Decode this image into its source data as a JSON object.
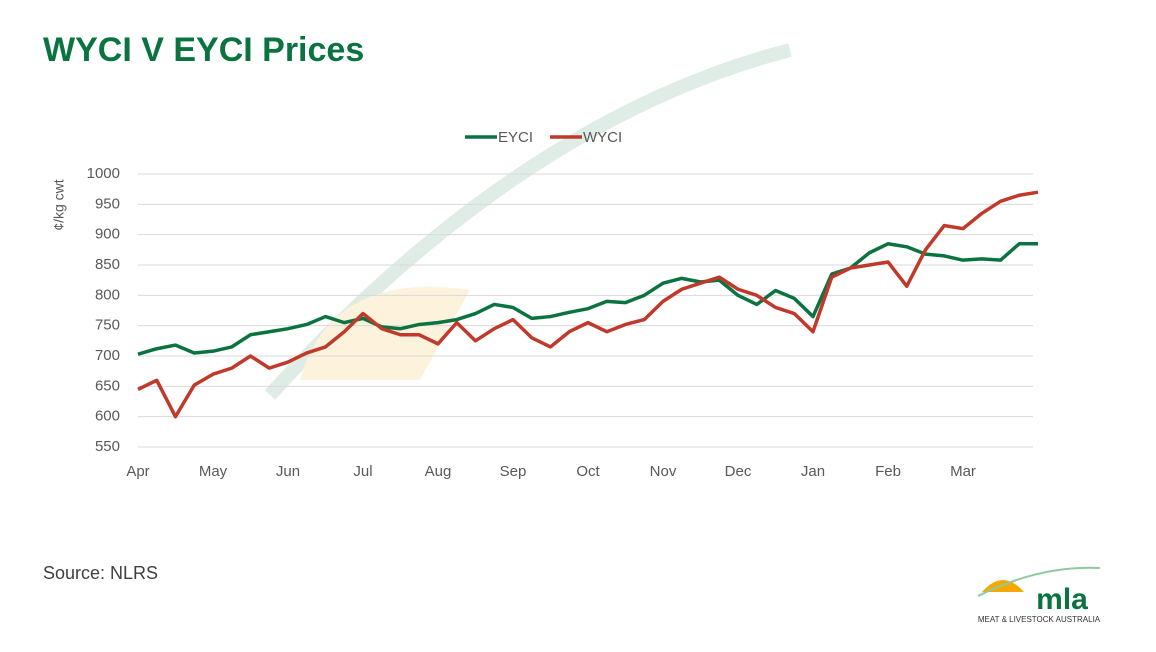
{
  "chart_data": {
    "type": "line",
    "title": "WYCI V EYCI Prices",
    "y_label": "¢/kg cwt",
    "source": "Source: NLRS",
    "logo_text": "mla",
    "logo_subtitle": "MEAT & LIVESTOCK AUSTRALIA",
    "categories": [
      "Apr",
      null,
      null,
      null,
      "May",
      null,
      null,
      null,
      "Jun",
      null,
      null,
      null,
      "Jul",
      null,
      null,
      null,
      "Aug",
      null,
      null,
      null,
      "Sep",
      null,
      null,
      null,
      "Oct",
      null,
      null,
      null,
      "Nov",
      null,
      null,
      null,
      "Dec",
      null,
      null,
      null,
      "Jan",
      null,
      null,
      null,
      "Feb",
      null,
      null,
      null,
      "Mar",
      null,
      null,
      null,
      null
    ],
    "series": [
      {
        "name": "EYCI",
        "color": "#0b7340",
        "values": [
          703,
          712,
          718,
          705,
          708,
          715,
          735,
          740,
          745,
          752,
          765,
          755,
          762,
          748,
          745,
          752,
          755,
          760,
          770,
          785,
          780,
          762,
          765,
          772,
          778,
          790,
          788,
          800,
          820,
          828,
          822,
          825,
          800,
          785,
          808,
          795,
          765,
          835,
          845,
          870,
          885,
          880,
          868,
          865,
          858,
          860,
          858,
          885,
          885
        ]
      },
      {
        "name": "WYCI",
        "color": "#c0392b",
        "values": [
          645,
          660,
          600,
          652,
          670,
          680,
          700,
          680,
          690,
          705,
          715,
          740,
          770,
          745,
          735,
          735,
          720,
          755,
          725,
          745,
          760,
          730,
          715,
          740,
          755,
          740,
          752,
          760,
          790,
          810,
          820,
          830,
          810,
          800,
          780,
          770,
          740,
          830,
          845,
          850,
          855,
          815,
          875,
          915,
          910,
          935,
          955,
          965,
          970
        ]
      }
    ],
    "ylim": [
      550,
      1000
    ],
    "yticks": [
      550,
      600,
      650,
      700,
      750,
      800,
      850,
      900,
      950,
      1000
    ],
    "grid": true,
    "legend": "top"
  }
}
